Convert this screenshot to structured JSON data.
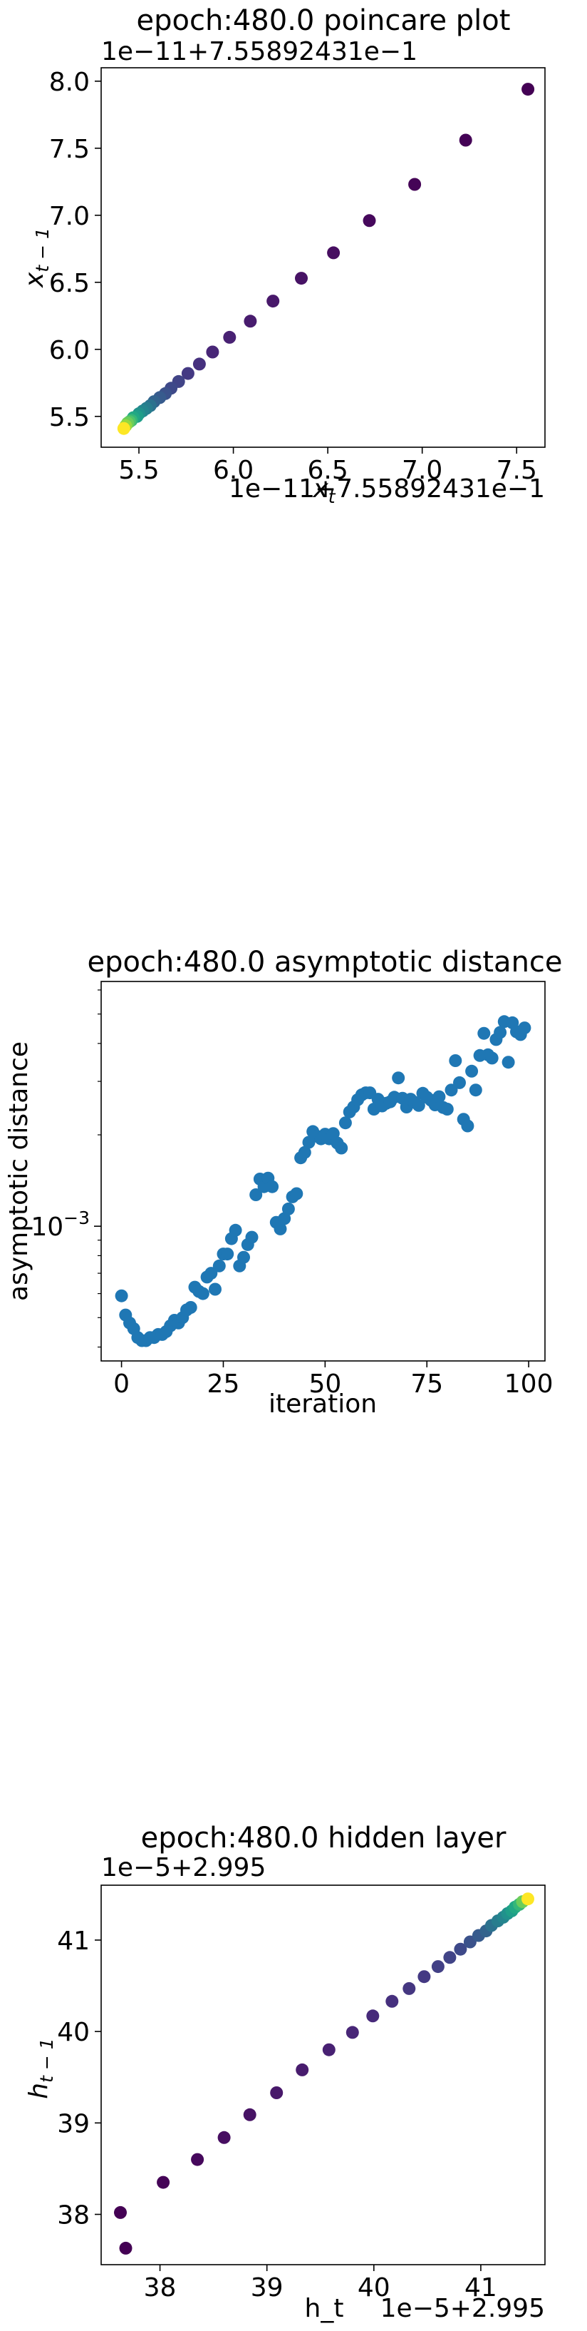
{
  "chart_data": [
    {
      "type": "scatter",
      "title": "epoch:480.0 poincare plot",
      "xlabel": "x_t",
      "ylabel": "x_{t-1}",
      "x_offset_label": "1e−11+7.55892431e−1",
      "y_offset_label": "1e−11+7.55892431e−1",
      "xlim": [
        5.3,
        7.65
      ],
      "ylim": [
        5.27,
        8.1
      ],
      "xticks": [
        5.5,
        6.0,
        6.5,
        7.0,
        7.5
      ],
      "xtick_labels": [
        "5.5",
        "6.0",
        "6.5",
        "7.0",
        "7.5"
      ],
      "yticks": [
        5.5,
        6.0,
        6.5,
        7.0,
        7.5,
        8.0
      ],
      "ytick_labels": [
        "5.5",
        "6.0",
        "6.5",
        "7.0",
        "7.5",
        "8.0"
      ],
      "colormap": "viridis",
      "points": {
        "x": [
          7.56,
          7.23,
          6.96,
          6.72,
          6.53,
          6.36,
          6.21,
          6.09,
          5.98,
          5.89,
          5.82,
          5.76,
          5.71,
          5.67,
          5.64,
          5.61,
          5.58,
          5.56,
          5.54,
          5.52,
          5.5,
          5.49,
          5.47,
          5.46,
          5.45,
          5.44,
          5.43,
          5.42
        ],
        "y": [
          7.94,
          7.56,
          7.23,
          6.96,
          6.72,
          6.53,
          6.36,
          6.21,
          6.09,
          5.98,
          5.89,
          5.82,
          5.76,
          5.71,
          5.67,
          5.64,
          5.61,
          5.58,
          5.56,
          5.54,
          5.52,
          5.5,
          5.49,
          5.47,
          5.46,
          5.45,
          5.43,
          5.41
        ],
        "colors": [
          "#440154",
          "#440256",
          "#450457",
          "#46085c",
          "#470e61",
          "#471365",
          "#48186a",
          "#481c6e",
          "#482173",
          "#482677",
          "#46307e",
          "#443983",
          "#414487",
          "#3e4989",
          "#3b528b",
          "#375b8d",
          "#33638d",
          "#2c728e",
          "#287d8e",
          "#25858e",
          "#21918c",
          "#1f9e89",
          "#22a884",
          "#35b779",
          "#4ec36b",
          "#6ccd5a",
          "#95d840",
          "#fde725"
        ]
      }
    },
    {
      "type": "scatter",
      "title": "epoch:480.0 asymptotic distance",
      "xlabel": "iteration",
      "ylabel": "asymptotic distance",
      "y_scale": "log",
      "xlim": [
        -5,
        104
      ],
      "ylim": [
        0.00036,
        0.0064
      ],
      "xticks": [
        0,
        25,
        50,
        75,
        100
      ],
      "xtick_labels": [
        "0",
        "25",
        "50",
        "75",
        "100"
      ],
      "ytick_major": [
        0.001
      ],
      "ytick_major_labels": [
        "10^-3"
      ],
      "color": "#1f77b4",
      "points": {
        "x": [
          0,
          1,
          2,
          3,
          4,
          5,
          6,
          7,
          8,
          9,
          10,
          11,
          12,
          13,
          14,
          15,
          16,
          17,
          18,
          19,
          20,
          21,
          22,
          23,
          24,
          25,
          26,
          27,
          28,
          29,
          30,
          31,
          32,
          33,
          34,
          35,
          36,
          37,
          38,
          39,
          40,
          41,
          42,
          43,
          44,
          45,
          46,
          47,
          48,
          49,
          50,
          51,
          52,
          53,
          54,
          55,
          56,
          57,
          58,
          59,
          60,
          61,
          62,
          63,
          64,
          65,
          66,
          67,
          68,
          69,
          70,
          71,
          72,
          73,
          74,
          75,
          76,
          77,
          78,
          79,
          80,
          81,
          82,
          83,
          84,
          85,
          86,
          87,
          88,
          89,
          90,
          91,
          92,
          93,
          94,
          95,
          96,
          97,
          98,
          99
        ],
        "y": [
          0.00059,
          0.00051,
          0.00048,
          0.00046,
          0.00043,
          0.00042,
          0.00042,
          0.00043,
          0.00043,
          0.00044,
          0.00044,
          0.00045,
          0.00047,
          0.00049,
          0.00048,
          0.0005,
          0.00053,
          0.00054,
          0.00063,
          0.00061,
          0.0006,
          0.00068,
          0.0007,
          0.00062,
          0.00074,
          0.00081,
          0.00081,
          0.00091,
          0.00097,
          0.00074,
          0.00079,
          0.00087,
          0.00092,
          0.00127,
          0.00143,
          0.00135,
          0.00144,
          0.00135,
          0.00103,
          0.00098,
          0.00106,
          0.00114,
          0.00125,
          0.00128,
          0.00168,
          0.00175,
          0.00189,
          0.00205,
          0.00198,
          0.00194,
          0.00201,
          0.00194,
          0.00202,
          0.00188,
          0.00181,
          0.00219,
          0.00238,
          0.00247,
          0.00261,
          0.00271,
          0.00275,
          0.00275,
          0.00243,
          0.00262,
          0.00249,
          0.00254,
          0.00257,
          0.00266,
          0.00308,
          0.00264,
          0.00247,
          0.00262,
          0.00256,
          0.0025,
          0.00274,
          0.00266,
          0.0026,
          0.00251,
          0.00267,
          0.00246,
          0.00243,
          0.00281,
          0.00351,
          0.00297,
          0.00225,
          0.00214,
          0.00324,
          0.00281,
          0.00365,
          0.00432,
          0.00367,
          0.00358,
          0.00412,
          0.00435,
          0.00472,
          0.00347,
          0.00468,
          0.00437,
          0.00428,
          0.0045
        ]
      }
    },
    {
      "type": "scatter",
      "title": "epoch:480.0 hidden layer",
      "xlabel": "h_t",
      "ylabel": "h_{t-1}",
      "x_offset_label": "1e−5+2.995",
      "y_offset_label": "1e−5+2.995",
      "xlim": [
        37.45,
        41.6
      ],
      "ylim": [
        37.45,
        41.6
      ],
      "xticks": [
        38,
        39,
        40,
        41
      ],
      "xtick_labels": [
        "38",
        "39",
        "40",
        "41"
      ],
      "yticks": [
        38,
        39,
        40,
        41
      ],
      "ytick_labels": [
        "38",
        "39",
        "40",
        "41"
      ],
      "colormap": "viridis",
      "points": {
        "x": [
          37.63,
          37.68,
          38.03,
          38.35,
          38.6,
          38.84,
          39.09,
          39.33,
          39.58,
          39.8,
          39.99,
          40.17,
          40.33,
          40.47,
          40.6,
          40.71,
          40.81,
          40.9,
          40.98,
          41.05,
          41.1,
          41.16,
          41.21,
          41.25,
          41.29,
          41.32,
          41.36,
          41.39,
          41.44
        ],
        "y": [
          38.02,
          37.63,
          38.35,
          38.6,
          38.84,
          39.09,
          39.33,
          39.58,
          39.8,
          39.99,
          40.17,
          40.33,
          40.47,
          40.6,
          40.71,
          40.81,
          40.9,
          40.98,
          41.05,
          41.1,
          41.16,
          41.21,
          41.25,
          41.29,
          41.32,
          41.36,
          41.39,
          41.42,
          41.45
        ],
        "colors": [
          "#440154",
          "#440154",
          "#450457",
          "#46085c",
          "#470e61",
          "#471365",
          "#48186a",
          "#481c6e",
          "#482173",
          "#482677",
          "#472a7a",
          "#46307e",
          "#453781",
          "#443983",
          "#424086",
          "#414487",
          "#3e4989",
          "#3b528b",
          "#375b8d",
          "#33638d",
          "#2c728e",
          "#287d8e",
          "#25858e",
          "#21918c",
          "#1f9e89",
          "#22a884",
          "#35b779",
          "#6ccd5a",
          "#fde725"
        ]
      }
    }
  ]
}
